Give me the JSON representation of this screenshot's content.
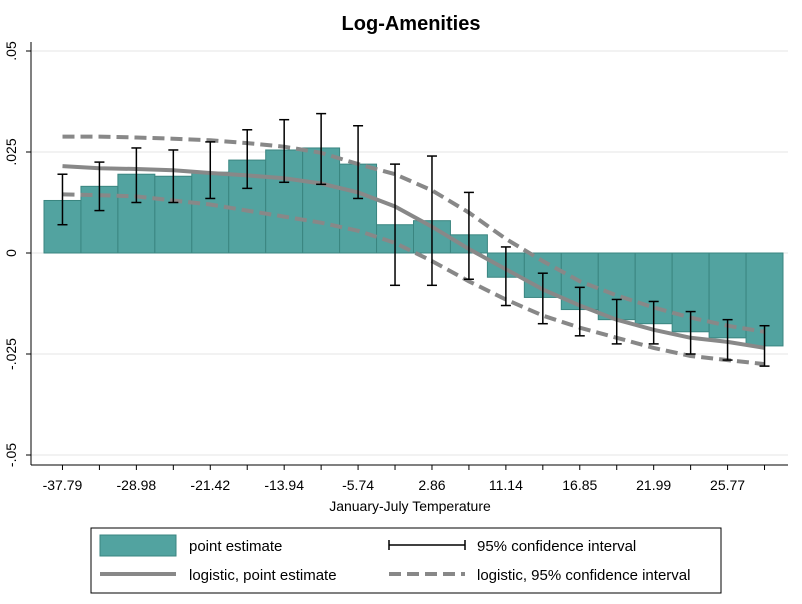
{
  "chart_data": {
    "type": "bar",
    "title": "Log-Amenities",
    "xlabel": "January-July Temperature",
    "ylabel": "",
    "ylim": [
      -0.05,
      0.05
    ],
    "yticks": [
      0.05,
      0.025,
      0,
      -0.025,
      -0.05
    ],
    "ytick_labels": [
      ".05",
      ".025",
      "0",
      "-.025",
      "-.05"
    ],
    "xtick_labels": [
      "-37.79",
      "-28.98",
      "-21.42",
      "-13.94",
      "-5.74",
      "2.86",
      "11.14",
      "16.85",
      "21.99",
      "25.77"
    ],
    "grid": true,
    "bar_color": "#52a3a0",
    "bar_edge_color": "#3a8580",
    "curve_color": "#888888",
    "legend_position": "bottom",
    "series": [
      {
        "name": "point estimate",
        "values": [
          0.013,
          0.0165,
          0.0195,
          0.019,
          0.02,
          0.023,
          0.0255,
          0.026,
          0.022,
          0.007,
          0.008,
          0.0045,
          -0.006,
          -0.011,
          -0.014,
          -0.0165,
          -0.0175,
          -0.0195,
          -0.021,
          -0.023
        ]
      },
      {
        "name": "95% confidence interval",
        "lower": [
          0.007,
          0.0105,
          0.0125,
          0.0125,
          0.0135,
          0.016,
          0.0175,
          0.017,
          0.0135,
          -0.008,
          -0.008,
          -0.0065,
          -0.013,
          -0.0175,
          -0.0205,
          -0.0225,
          -0.0225,
          -0.025,
          -0.0265,
          -0.028
        ],
        "upper": [
          0.0195,
          0.0225,
          0.026,
          0.0255,
          0.0275,
          0.0305,
          0.033,
          0.0345,
          0.0315,
          0.022,
          0.024,
          0.015,
          0.0015,
          -0.005,
          -0.0085,
          -0.0115,
          -0.012,
          -0.0145,
          -0.0165,
          -0.018
        ]
      },
      {
        "name": "logistic, point estimate",
        "values": [
          0.0215,
          0.021,
          0.0208,
          0.0205,
          0.0198,
          0.0192,
          0.0185,
          0.0172,
          0.015,
          0.0115,
          0.0065,
          0.001,
          -0.004,
          -0.009,
          -0.013,
          -0.0165,
          -0.019,
          -0.021,
          -0.022,
          -0.0235
        ]
      },
      {
        "name": "logistic, 95% confidence interval",
        "upper": [
          0.0288,
          0.0288,
          0.0286,
          0.0283,
          0.0279,
          0.0272,
          0.0263,
          0.0248,
          0.022,
          0.0195,
          0.0155,
          0.01,
          0.0035,
          -0.002,
          -0.007,
          -0.0105,
          -0.0135,
          -0.016,
          -0.018,
          -0.0195
        ],
        "lower": [
          0.0145,
          0.0143,
          0.014,
          0.013,
          0.012,
          0.0105,
          0.009,
          0.0075,
          0.0055,
          0.0025,
          -0.002,
          -0.007,
          -0.0115,
          -0.0155,
          -0.0185,
          -0.021,
          -0.0235,
          -0.0255,
          -0.0265,
          -0.0275
        ]
      }
    ]
  }
}
